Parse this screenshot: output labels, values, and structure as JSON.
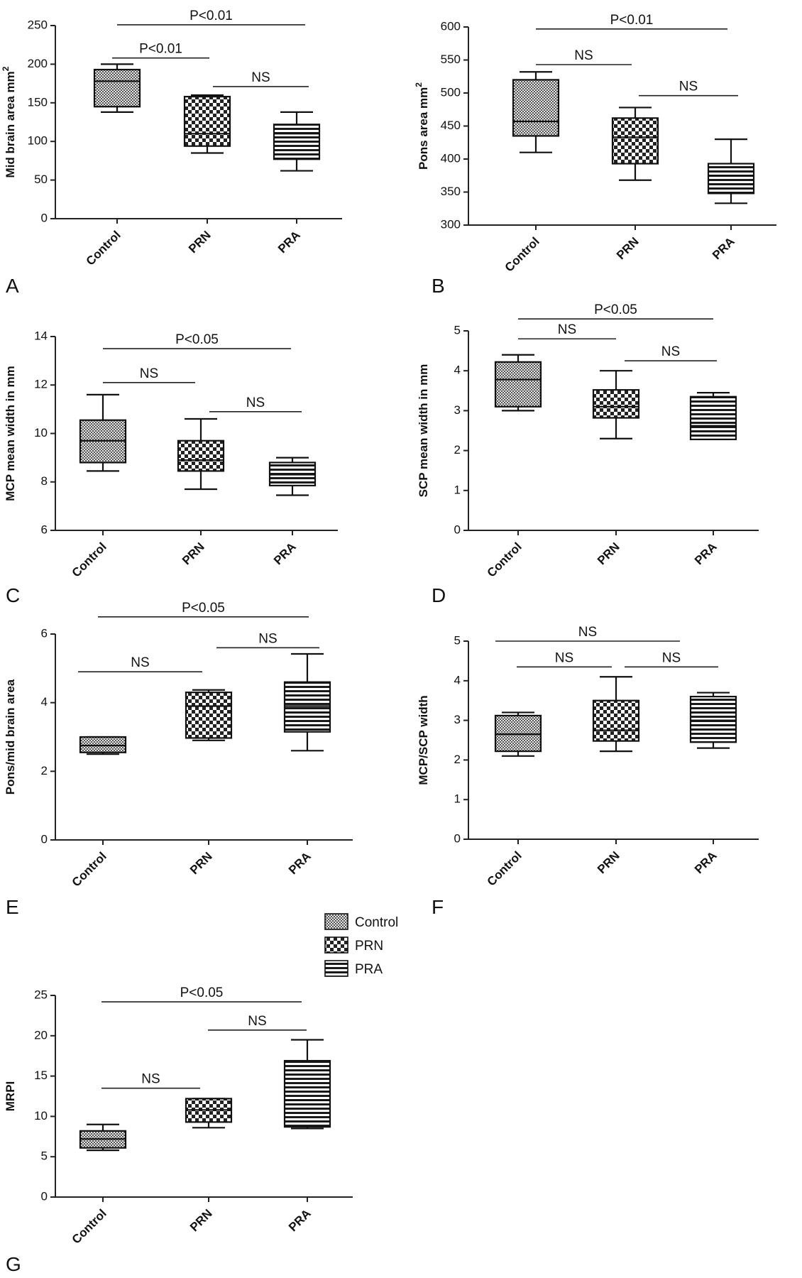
{
  "chart_data": [
    {
      "panel": "A",
      "type": "box",
      "ylabel": "Mid brain area mm",
      "ylabel_sup": "2",
      "ylim": [
        0,
        250
      ],
      "yticks": [
        0,
        50,
        100,
        150,
        200,
        250
      ],
      "categories": [
        "Control",
        "PRN",
        "PRA"
      ],
      "boxes": [
        {
          "min": 138,
          "q1": 145,
          "median": 178,
          "q3": 193,
          "max": 200,
          "pattern": "control"
        },
        {
          "min": 85,
          "q1": 94,
          "median": 110,
          "q3": 158,
          "max": 160,
          "pattern": "prn"
        },
        {
          "min": 62,
          "q1": 77,
          "median": 110,
          "q3": 122,
          "max": 138,
          "pattern": "pra"
        }
      ],
      "comparisons": [
        {
          "from": 0,
          "to": 2,
          "label": "P<0.01",
          "y": 251
        },
        {
          "from": 0,
          "to": 1,
          "label": "P<0.01",
          "y": 208
        },
        {
          "from": 1,
          "to": 2,
          "label": "NS",
          "y": 171
        }
      ]
    },
    {
      "panel": "B",
      "type": "box",
      "ylabel": "Pons area mm",
      "ylabel_sup": "2",
      "ylim": [
        300,
        600
      ],
      "yticks": [
        300,
        350,
        400,
        450,
        500,
        550,
        600
      ],
      "categories": [
        "Control",
        "PRN",
        "PRA"
      ],
      "boxes": [
        {
          "min": 410,
          "q1": 435,
          "median": 457,
          "q3": 520,
          "max": 532,
          "pattern": "control"
        },
        {
          "min": 368,
          "q1": 393,
          "median": 433,
          "q3": 462,
          "max": 478,
          "pattern": "prn"
        },
        {
          "min": 333,
          "q1": 348,
          "median": 375,
          "q3": 393,
          "max": 430,
          "pattern": "pra"
        }
      ],
      "comparisons": [
        {
          "from": 0,
          "to": 2,
          "label": "P<0.01",
          "y": 597
        },
        {
          "from": 0,
          "to": 1,
          "label": "NS",
          "y": 543
        },
        {
          "from": 1,
          "to": 2,
          "label": "NS",
          "y": 496
        }
      ]
    },
    {
      "panel": "C",
      "type": "box",
      "ylabel": "MCP mean width in mm",
      "ylabel_sup": "",
      "ylim": [
        6,
        14
      ],
      "yticks": [
        6,
        8,
        10,
        12,
        14
      ],
      "categories": [
        "Control",
        "PRN",
        "PRA"
      ],
      "boxes": [
        {
          "min": 8.45,
          "q1": 8.8,
          "median": 9.7,
          "q3": 10.55,
          "max": 11.6,
          "pattern": "control"
        },
        {
          "min": 7.7,
          "q1": 8.45,
          "median": 8.9,
          "q3": 9.7,
          "max": 10.6,
          "pattern": "prn"
        },
        {
          "min": 7.45,
          "q1": 7.85,
          "median": 8.3,
          "q3": 8.8,
          "max": 9.0,
          "pattern": "pra"
        }
      ],
      "comparisons": [
        {
          "from": 0,
          "to": 2,
          "label": "P<0.05",
          "y": 13.5
        },
        {
          "from": 0,
          "to": 1,
          "label": "NS",
          "y": 12.1
        },
        {
          "from": 1,
          "to": 2,
          "label": "NS",
          "y": 10.9
        }
      ]
    },
    {
      "panel": "D",
      "type": "box",
      "ylabel": "SCP mean width in mm",
      "ylabel_sup": "",
      "ylim": [
        0,
        5
      ],
      "yticks": [
        0,
        1,
        2,
        3,
        4,
        5
      ],
      "categories": [
        "Control",
        "PRN",
        "PRA"
      ],
      "boxes": [
        {
          "min": 3.0,
          "q1": 3.1,
          "median": 3.78,
          "q3": 4.22,
          "max": 4.4,
          "pattern": "control"
        },
        {
          "min": 2.3,
          "q1": 2.82,
          "median": 3.1,
          "q3": 3.52,
          "max": 4.0,
          "pattern": "prn"
        },
        {
          "min": 2.28,
          "q1": 2.28,
          "median": 2.62,
          "q3": 3.35,
          "max": 3.45,
          "pattern": "pra"
        }
      ],
      "comparisons": [
        {
          "from": 0,
          "to": 2,
          "label": "P<0.05",
          "y": 5.3
        },
        {
          "from": 0,
          "to": 1,
          "label": "NS",
          "y": 4.8
        },
        {
          "from": 1,
          "to": 2,
          "label": "NS",
          "y": 4.25
        }
      ]
    },
    {
      "panel": "E",
      "type": "box",
      "ylabel": "Pons/mid brain area",
      "ylabel_sup": "",
      "ylim": [
        0,
        6
      ],
      "yticks": [
        0,
        2,
        4,
        6
      ],
      "categories": [
        "Control",
        "PRN",
        "PRA"
      ],
      "boxes": [
        {
          "min": 2.5,
          "q1": 2.55,
          "median": 2.75,
          "q3": 3.0,
          "max": 3.0,
          "pattern": "control"
        },
        {
          "min": 2.9,
          "q1": 2.97,
          "median": 3.9,
          "q3": 4.3,
          "max": 4.37,
          "pattern": "prn"
        },
        {
          "min": 2.6,
          "q1": 3.15,
          "median": 3.9,
          "q3": 4.6,
          "max": 5.42,
          "pattern": "pra"
        }
      ],
      "comparisons": [
        {
          "from": 0,
          "to": 2,
          "label": "P<0.05",
          "y": 6.5
        },
        {
          "from": 1,
          "to": 2,
          "label": "NS",
          "y": 5.6
        },
        {
          "from": 0,
          "to": 1,
          "label": "NS",
          "y": 4.9
        }
      ]
    },
    {
      "panel": "F",
      "type": "box",
      "ylabel": "MCP/SCP width",
      "ylabel_sup": "",
      "ylim": [
        0,
        5
      ],
      "yticks": [
        0,
        1,
        2,
        3,
        4,
        5
      ],
      "categories": [
        "Control",
        "PRN",
        "PRA"
      ],
      "boxes": [
        {
          "min": 2.1,
          "q1": 2.22,
          "median": 2.65,
          "q3": 3.12,
          "max": 3.2,
          "pattern": "control"
        },
        {
          "min": 2.22,
          "q1": 2.48,
          "median": 2.75,
          "q3": 3.5,
          "max": 4.1,
          "pattern": "prn"
        },
        {
          "min": 2.3,
          "q1": 2.45,
          "median": 3.0,
          "q3": 3.6,
          "max": 3.7,
          "pattern": "pra"
        }
      ],
      "comparisons": [
        {
          "from": 0,
          "to": 2,
          "label": "NS",
          "y": 5.0
        },
        {
          "from": 0,
          "to": 1,
          "label": "NS",
          "y": 4.35
        },
        {
          "from": 1,
          "to": 2,
          "label": "NS",
          "y": 4.35
        }
      ]
    },
    {
      "panel": "G",
      "type": "box",
      "ylabel": "MRPI",
      "ylabel_sup": "",
      "ylim": [
        0,
        25
      ],
      "yticks": [
        0,
        5,
        10,
        15,
        20,
        25
      ],
      "categories": [
        "Control",
        "PRN",
        "PRA"
      ],
      "boxes": [
        {
          "min": 5.8,
          "q1": 6.1,
          "median": 7.2,
          "q3": 8.2,
          "max": 9.0,
          "pattern": "control"
        },
        {
          "min": 8.6,
          "q1": 9.3,
          "median": 10.8,
          "q3": 12.2,
          "max": 12.2,
          "pattern": "prn"
        },
        {
          "min": 8.5,
          "q1": 8.7,
          "median": 12.0,
          "q3": 16.9,
          "max": 19.5,
          "pattern": "pra"
        }
      ],
      "comparisons": [
        {
          "from": 0,
          "to": 2,
          "label": "P<0.05",
          "y": 24.2
        },
        {
          "from": 1,
          "to": 2,
          "label": "NS",
          "y": 20.7
        },
        {
          "from": 0,
          "to": 1,
          "label": "NS",
          "y": 13.5
        }
      ]
    }
  ],
  "legend": {
    "placement": "between panel F and panel G",
    "items": [
      {
        "label": "Control",
        "pattern": "control"
      },
      {
        "label": "PRN",
        "pattern": "prn"
      },
      {
        "label": "PRA",
        "pattern": "pra"
      }
    ]
  }
}
